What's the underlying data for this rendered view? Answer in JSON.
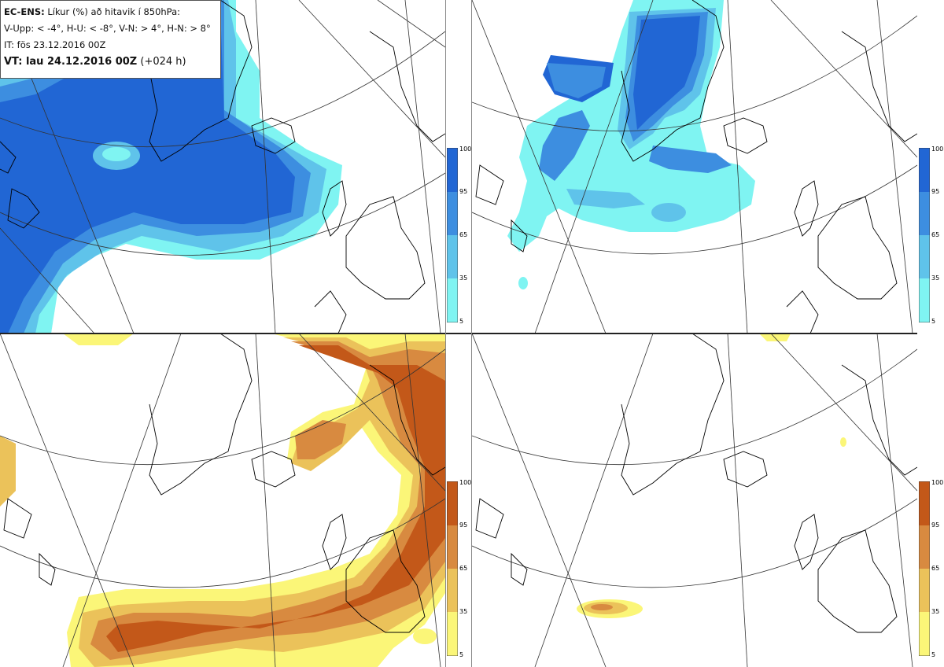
{
  "header": {
    "product": "EC-ENS:",
    "description": "Líkur (%) að hitavik í 850hPa:",
    "thresholds": "V-Upp: < -4°, H-U: < -8°, V-N: > 4°, H-N: > 8°",
    "initial_time": "IT: fös 23.12.2016 00Z",
    "valid_label": "VT: lau 24.12.2016 00Z",
    "valid_offset": "(+024 h)"
  },
  "panels": [
    {
      "id": "v-upp",
      "theme": "cold"
    },
    {
      "id": "h-u",
      "theme": "cold"
    },
    {
      "id": "v-n",
      "theme": "warm"
    },
    {
      "id": "h-n",
      "theme": "warm"
    }
  ],
  "legend": {
    "ticks": [
      "100",
      "95",
      "65",
      "35",
      "5"
    ],
    "cold_colors": [
      "#2166d4",
      "#3d8ee0",
      "#5fc3ea",
      "#7ff4f2"
    ],
    "warm_colors": [
      "#c35819",
      "#d88a40",
      "#ebc25a",
      "#fbf678"
    ]
  }
}
